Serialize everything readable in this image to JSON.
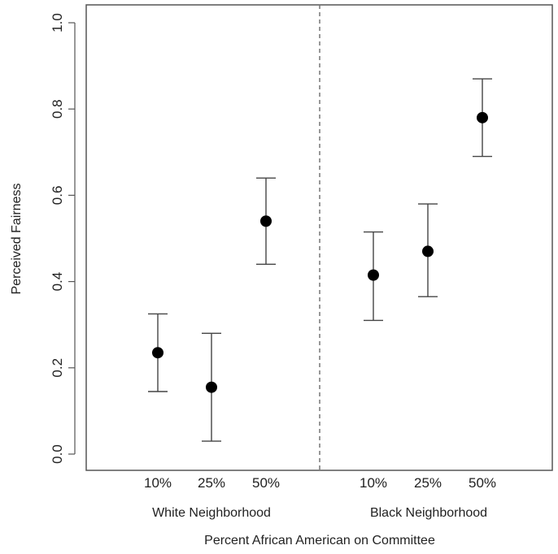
{
  "chart_data": {
    "type": "scatter",
    "ylabel": "Perceived Fairness",
    "xlabel": "Percent African American on Committee",
    "ylim": [
      0,
      1.0
    ],
    "yticks": [
      "0.0",
      "0.2",
      "0.4",
      "0.6",
      "0.8",
      "1.0"
    ],
    "groups": [
      {
        "label": "White Neighborhood",
        "points": [
          {
            "category": "10%",
            "y": 0.235,
            "lower": 0.145,
            "upper": 0.325
          },
          {
            "category": "25%",
            "y": 0.155,
            "lower": 0.03,
            "upper": 0.28
          },
          {
            "category": "50%",
            "y": 0.54,
            "lower": 0.44,
            "upper": 0.64
          }
        ]
      },
      {
        "label": "Black Neighborhood",
        "points": [
          {
            "category": "10%",
            "y": 0.415,
            "lower": 0.31,
            "upper": 0.515
          },
          {
            "category": "25%",
            "y": 0.47,
            "lower": 0.365,
            "upper": 0.58
          },
          {
            "category": "50%",
            "y": 0.78,
            "lower": 0.69,
            "upper": 0.87
          }
        ]
      }
    ],
    "grid": false,
    "divider": "dashed vertical line between groups",
    "marker_color": "#000000",
    "errorbar_color": "#444444"
  }
}
